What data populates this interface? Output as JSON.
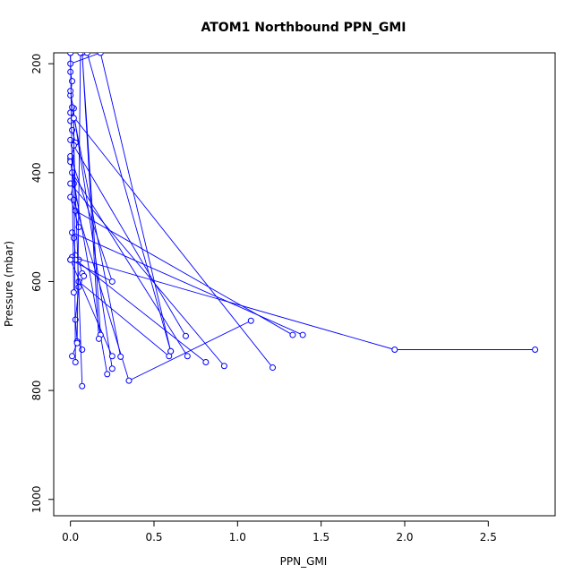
{
  "chart_data": {
    "type": "line",
    "title": "ATOM1 Northbound PPN_GMI",
    "xlabel": "PPN_GMI",
    "ylabel": "Pressure (mbar)",
    "xlim": [
      -0.1,
      2.9
    ],
    "ylim": [
      1030,
      180
    ],
    "y_reversed": true,
    "grid": false,
    "legend": "none",
    "xticks": [
      0.0,
      0.5,
      1.0,
      1.5,
      2.0,
      2.5
    ],
    "xtick_labels": [
      "0.0",
      "0.5",
      "1.0",
      "1.5",
      "2.0",
      "2.5"
    ],
    "yticks": [
      200,
      400,
      600,
      800,
      1000
    ],
    "ytick_labels": [
      "200",
      "400",
      "600",
      "800",
      "1000"
    ],
    "color": "#0000ff",
    "series": [
      {
        "x": [
          0.0,
          0.0,
          0.01,
          0.0,
          0.02,
          0.0,
          0.01,
          0.03,
          0.0,
          0.02,
          0.0,
          0.05
        ],
        "y": [
          180,
          215,
          232,
          258,
          282,
          305,
          322,
          345,
          375,
          420,
          445,
          500
        ]
      },
      {
        "x": [
          0.02,
          0.03,
          0.05,
          0.07,
          0.08,
          0.05,
          0.03,
          0.04,
          0.07
        ],
        "y": [
          520,
          552,
          560,
          585,
          590,
          610,
          670,
          710,
          725
        ]
      },
      {
        "x": [
          2.78,
          1.94,
          0.01
        ],
        "y": [
          725,
          725,
          555
        ]
      },
      {
        "x": [
          1.39,
          0.01
        ],
        "y": [
          698,
          510
        ]
      },
      {
        "x": [
          1.33,
          0.03
        ],
        "y": [
          698,
          470
        ]
      },
      {
        "x": [
          1.21,
          0.0
        ],
        "y": [
          758,
          290
        ]
      },
      {
        "x": [
          1.08,
          0.35,
          0.02
        ],
        "y": [
          672,
          782,
          450
        ]
      },
      {
        "x": [
          0.92,
          0.0
        ],
        "y": [
          755,
          420
        ]
      },
      {
        "x": [
          0.81,
          0.03
        ],
        "y": [
          748,
          560
        ]
      },
      {
        "x": [
          0.7,
          0.01
        ],
        "y": [
          737,
          400
        ]
      },
      {
        "x": [
          0.69,
          0.0
        ],
        "y": [
          700,
          340
        ]
      },
      {
        "x": [
          0.59,
          0.05
        ],
        "y": [
          737,
          600
        ]
      },
      {
        "x": [
          0.6,
          0.18,
          0.0
        ],
        "y": [
          728,
          180,
          200
        ]
      },
      {
        "x": [
          0.6,
          0.1
        ],
        "y": [
          728,
          180
        ]
      },
      {
        "x": [
          0.3,
          0.01
        ],
        "y": [
          738,
          280
        ]
      },
      {
        "x": [
          0.25,
          0.0
        ],
        "y": [
          760,
          250
        ]
      },
      {
        "x": [
          0.25,
          0.0
        ],
        "y": [
          737,
          560
        ]
      },
      {
        "x": [
          0.22,
          0.0
        ],
        "y": [
          770,
          380
        ]
      },
      {
        "x": [
          0.18,
          0.07,
          0.17
        ],
        "y": [
          698,
          180,
          705
        ]
      },
      {
        "x": [
          0.0,
          0.25,
          0.0
        ],
        "y": [
          370,
          600,
          560
        ]
      },
      {
        "x": [
          0.07,
          0.02
        ],
        "y": [
          792,
          350
        ]
      },
      {
        "x": [
          0.03,
          0.02
        ],
        "y": [
          748,
          300
        ]
      },
      {
        "x": [
          0.01,
          0.04,
          0.06
        ],
        "y": [
          737,
          713,
          180
        ]
      },
      {
        "x": [
          0.02,
          0.0
        ],
        "y": [
          620,
          180
        ]
      }
    ]
  }
}
